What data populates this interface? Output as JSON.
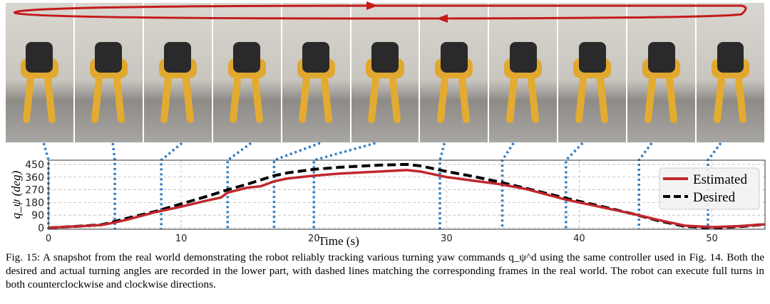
{
  "figure": {
    "frames": 11,
    "caption": "Fig. 15: A snapshot from the real world demonstrating the robot reliably tracking various turning yaw commands q_ψ^d using the same controller used in Fig. 14. Both the desired and actual turning angles are recorded in the lower part, with dashed lines matching the corresponding frames in the real world. The robot can execute full turns in both counterclockwise and clockwise directions."
  },
  "chart_data": {
    "type": "line",
    "xlabel": "Time (s)",
    "ylabel": "q_ψ (deg)",
    "xlim": [
      0,
      54
    ],
    "ylim": [
      -10,
      480
    ],
    "xticks": [
      "0",
      "10",
      "20",
      "30",
      "40",
      "50"
    ],
    "yticks": [
      "0",
      "90",
      "180",
      "270",
      "360",
      "450"
    ],
    "grid": true,
    "legend": "right",
    "frame_markers_x": [
      0,
      5,
      8.5,
      13.5,
      17,
      20,
      29.5,
      34.2,
      39,
      44.5,
      49.7
    ],
    "series": [
      {
        "name": "Estimated",
        "color": "#c0282d",
        "style": "solid",
        "x": [
          0,
          2,
          4,
          5,
          6,
          8,
          10,
          12,
          13,
          13.5,
          15,
          16,
          17,
          18,
          20,
          22,
          25,
          27,
          28,
          30,
          32,
          34,
          36,
          39,
          42,
          44,
          46,
          48,
          50,
          52,
          54
        ],
        "y": [
          0,
          10,
          20,
          38,
          60,
          110,
          150,
          195,
          215,
          250,
          285,
          295,
          330,
          350,
          370,
          385,
          400,
          410,
          400,
          360,
          335,
          310,
          275,
          200,
          140,
          100,
          55,
          15,
          5,
          12,
          25
        ]
      },
      {
        "name": "Desired",
        "color": "#000000",
        "style": "dashed",
        "x": [
          0,
          2,
          4,
          5,
          6,
          8,
          10,
          12,
          13.5,
          15,
          17,
          18,
          20,
          22,
          25,
          27,
          28,
          30,
          32,
          34,
          36,
          39,
          42,
          44,
          46,
          48,
          50,
          52,
          54
        ],
        "y": [
          0,
          10,
          22,
          45,
          70,
          115,
          170,
          225,
          270,
          310,
          370,
          390,
          415,
          430,
          445,
          450,
          440,
          400,
          365,
          325,
          280,
          210,
          145,
          100,
          50,
          10,
          0,
          8,
          25
        ]
      }
    ]
  }
}
